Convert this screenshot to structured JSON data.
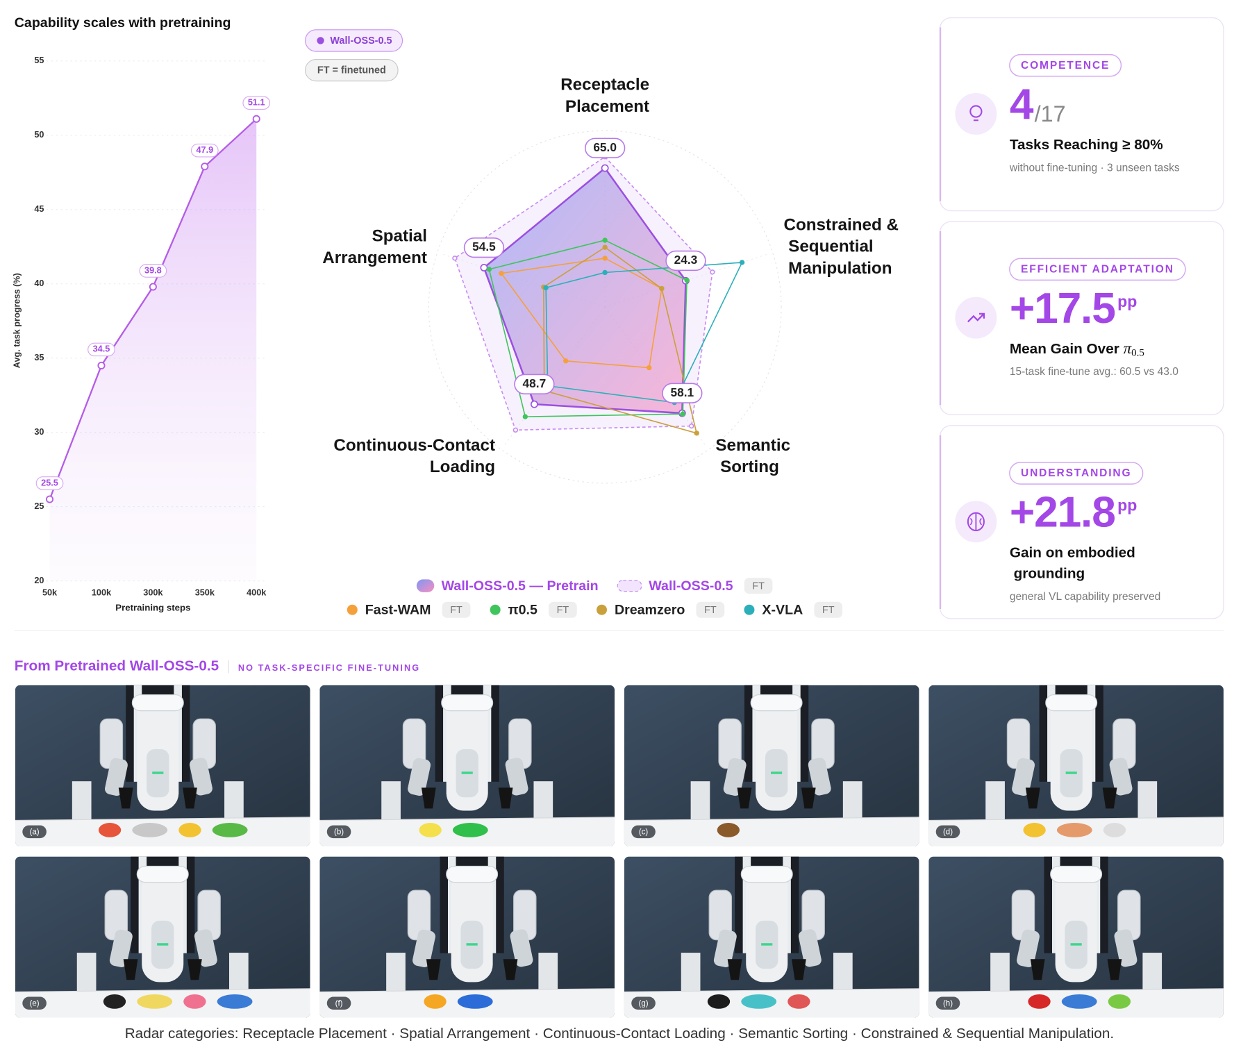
{
  "chart_data": [
    {
      "type": "line",
      "title": "Capability scales with pretraining",
      "x_label": "Pretraining steps",
      "y_label": "Avg. task progress (%)",
      "categories": [
        "50k",
        "100k",
        "300k",
        "350k",
        "400k"
      ],
      "values": [
        25.5,
        34.5,
        39.8,
        47.9,
        51.1
      ],
      "color": "#b45ce6",
      "ylim": [
        20,
        55
      ],
      "yticks": [
        20,
        25,
        30,
        35,
        40,
        45,
        50,
        55
      ],
      "grid": true
    },
    {
      "type": "radar",
      "notes": [
        "Wall-OSS-0.5",
        "FT = finetuned"
      ],
      "categories": [
        "Receptacle Placement",
        "Constrained & Sequential Manipulation",
        "Semantic Sorting",
        "Continuous-Contact Loading",
        "Spatial Arrangement"
      ],
      "rlim": [
        0,
        100
      ],
      "radial_scale": "sqrt",
      "series": [
        {
          "name": "Wall-OSS-0.5 — Pretrain",
          "color": "#9b4fe0",
          "fill": true,
          "values": [
            65,
            24.3,
            58.1,
            48.7,
            54.5
          ],
          "value_labels": [
            "65.0",
            "24.3",
            "58.1",
            "48.7",
            "54.5"
          ]
        },
        {
          "name": "Wall-OSS-0.5",
          "badge": "FT",
          "color": "#c78af2",
          "dashed": true,
          "values": [
            76,
            43,
            73,
            78,
            84
          ]
        },
        {
          "name": "Fast-WAM",
          "badge": "FT",
          "color": "#f5a03a",
          "values": [
            8,
            12,
            19,
            15,
            40
          ]
        },
        {
          "name": "π0.5",
          "badge": "FT",
          "color": "#3fc55c",
          "values": [
            15,
            25,
            59,
            62,
            50
          ]
        },
        {
          "name": "Dreamzero",
          "badge": "FT",
          "color": "#caa03c",
          "values": [
            12,
            12,
            82,
            36,
            14
          ]
        },
        {
          "name": "X-VLA",
          "badge": "FT",
          "color": "#2bb0b9",
          "values": [
            4,
            70,
            47,
            32,
            13
          ]
        }
      ]
    }
  ],
  "cards": [
    {
      "tag": "COMPETENCE",
      "value": "4",
      "suffix": "/17",
      "heading": "Tasks Reaching ≥ 80%",
      "subtitle": "without fine-tuning · 3 unseen tasks"
    },
    {
      "tag": "EFFICIENT ADAPTATION",
      "value": "+17.5",
      "suffix": "pp",
      "heading": "Mean Gain Over",
      "symbol": "π",
      "symbol_sub": "0.5",
      "subtitle": "15-task fine-tune avg.: 60.5 vs 43.0"
    },
    {
      "tag": "UNDERSTANDING",
      "value": "+21.8",
      "suffix": "pp",
      "heading": "Gain on embodied grounding",
      "subtitle": "general VL capability preserved"
    }
  ],
  "gallery": {
    "title": "From Pretrained Wall-OSS-0.5",
    "tag": "NO TASK-SPECIFIC FINE-TUNING",
    "panels": [
      "(a)",
      "(b)",
      "(c)",
      "(d)",
      "(e)",
      "(f)",
      "(g)",
      "(h)"
    ]
  },
  "caption": "Radar categories: Receptacle Placement · Spatial Arrangement · Continuous-Contact Loading · Semantic Sorting · Constrained & Sequential Manipulation."
}
